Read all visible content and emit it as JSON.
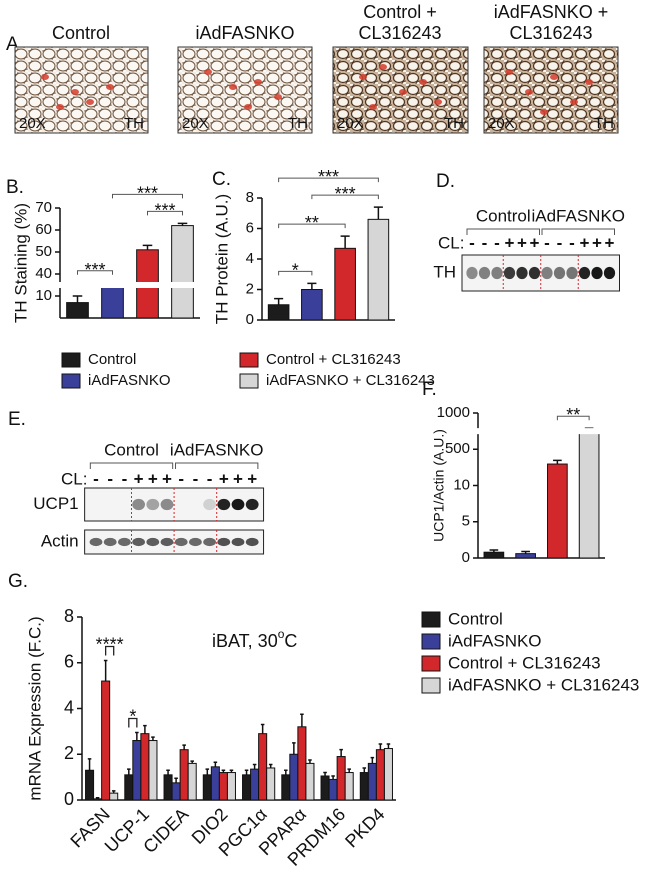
{
  "panel_a": {
    "label": "A.",
    "images": [
      {
        "caption": "Control",
        "magnification": "20X",
        "stain": "TH"
      },
      {
        "caption": "iAdFASNKO",
        "magnification": "20X",
        "stain": "TH"
      },
      {
        "caption": "Control + CL316243",
        "magnification": "20X",
        "stain": "TH"
      },
      {
        "caption": "iAdFASNKO + CL316243",
        "magnification": "20X",
        "stain": "TH"
      }
    ]
  },
  "panel_d": {
    "label": "D.",
    "groups": [
      "Control",
      "iAdFASNKO"
    ],
    "treatment_label": "CL:",
    "cl_signs": [
      "-",
      "-",
      "-",
      "+",
      "+",
      "+",
      "-",
      "-",
      "-",
      "+",
      "+",
      "+"
    ],
    "rows": [
      "TH"
    ]
  },
  "panel_e": {
    "label": "E.",
    "groups": [
      "Control",
      "iAdFASNKO"
    ],
    "treatment_label": "CL:",
    "cl_signs": [
      "-",
      "-",
      "-",
      "+",
      "+",
      "+",
      "-",
      "-",
      "-",
      "+",
      "+",
      "+"
    ],
    "rows": [
      "UCP1",
      "Actin"
    ]
  },
  "legend": [
    {
      "name": "Control",
      "color": "#1c1c1c"
    },
    {
      "name": "iAdFASNKO",
      "color": "#3a3f9a"
    },
    {
      "name": "Control + CL316243",
      "color": "#d2282b"
    },
    {
      "name": "iAdFASNKO + CL316243",
      "color": "#d6d6d6"
    }
  ],
  "chart_data": [
    {
      "type": "bar",
      "panel_label": "B.",
      "ylabel": "TH Staining (%)",
      "categories": [
        null,
        null,
        null,
        null
      ],
      "values": [
        7,
        25,
        51,
        62
      ],
      "errors": [
        3,
        3,
        2,
        1
      ],
      "colors": [
        "#1c1c1c",
        "#3a3f9a",
        "#d2282b",
        "#d6d6d6"
      ],
      "ylim": [
        0,
        70
      ],
      "yticks": [
        10,
        40,
        50,
        60,
        70
      ],
      "yscale": "broken",
      "significance": [
        {
          "from": 0,
          "to": 1,
          "label": "***"
        },
        {
          "from": 2,
          "to": 3,
          "label": "***"
        },
        {
          "from": 1,
          "to": 3,
          "label": "***"
        }
      ]
    },
    {
      "type": "bar",
      "panel_label": "C.",
      "ylabel": "TH Protein (A.U.)",
      "categories": [
        null,
        null,
        null,
        null
      ],
      "values": [
        1.0,
        2.0,
        4.7,
        6.6
      ],
      "errors": [
        0.4,
        0.4,
        0.8,
        0.8
      ],
      "colors": [
        "#1c1c1c",
        "#3a3f9a",
        "#d2282b",
        "#d6d6d6"
      ],
      "ylim": [
        0,
        8
      ],
      "yticks": [
        0,
        2,
        4,
        6,
        8
      ],
      "significance": [
        {
          "from": 0,
          "to": 1,
          "label": "*"
        },
        {
          "from": 0,
          "to": 2,
          "label": "**"
        },
        {
          "from": 1,
          "to": 3,
          "label": "***"
        },
        {
          "from": 0,
          "to": 3,
          "label": "***"
        }
      ]
    },
    {
      "type": "bar",
      "panel_label": "F.",
      "ylabel": "UCP1/Actin (A.U.)",
      "categories": [
        null,
        null,
        null,
        null
      ],
      "values": [
        0.8,
        0.6,
        300,
        760
      ],
      "errors": [
        0.3,
        0.3,
        50,
        30
      ],
      "colors": [
        "#1c1c1c",
        "#3a3f9a",
        "#d2282b",
        "#d6d6d6"
      ],
      "ylim": [
        0,
        1000
      ],
      "yticks": [
        0,
        5,
        10,
        500,
        1000
      ],
      "yscale": "broken",
      "significance": [
        {
          "from": 2,
          "to": 3,
          "label": "**"
        }
      ]
    },
    {
      "type": "grouped_bar",
      "panel_label": "G.",
      "ylabel": "mRNA Expression (F.C.)",
      "annotation": {
        "text": "iBAT, 30",
        "superscript": "o",
        "suffix": "C"
      },
      "categories": [
        "FASN",
        "UCP-1",
        "CIDEA",
        "DIO2",
        "PGC1α",
        "PPARα",
        "PRDM16",
        "PKD4"
      ],
      "series": [
        {
          "name": "Control",
          "color": "#1c1c1c",
          "values": [
            1.3,
            1.1,
            1.1,
            1.1,
            1.1,
            1.1,
            1.05,
            1.2
          ],
          "errors": [
            0.5,
            0.25,
            0.2,
            0.25,
            0.2,
            0.2,
            0.15,
            0.2
          ]
        },
        {
          "name": "iAdFASNKO",
          "color": "#3a3f9a",
          "values": [
            0.05,
            2.6,
            0.75,
            1.45,
            1.35,
            2.0,
            0.9,
            1.6
          ],
          "errors": [
            0.05,
            0.35,
            0.2,
            0.2,
            0.2,
            0.5,
            0.15,
            0.25
          ]
        },
        {
          "name": "Control + CL316243",
          "color": "#d2282b",
          "values": [
            5.2,
            2.9,
            2.2,
            1.2,
            2.9,
            3.2,
            1.9,
            2.2
          ],
          "errors": [
            0.9,
            0.35,
            0.2,
            0.1,
            0.4,
            0.55,
            0.3,
            0.25
          ]
        },
        {
          "name": "iAdFASNKO + CL316243",
          "color": "#d6d6d6",
          "values": [
            0.3,
            2.6,
            1.6,
            1.2,
            1.4,
            1.6,
            1.2,
            2.25
          ],
          "errors": [
            0.1,
            0.15,
            0.1,
            0.1,
            0.15,
            0.15,
            0.15,
            0.2
          ]
        }
      ],
      "ylim": [
        0,
        8
      ],
      "yticks": [
        0,
        2,
        4,
        6,
        8
      ],
      "significance": [
        {
          "category": 0,
          "from": 2,
          "to": 3,
          "label": "****"
        },
        {
          "category": 1,
          "from": 0,
          "to": 1,
          "label": "*"
        }
      ]
    }
  ]
}
